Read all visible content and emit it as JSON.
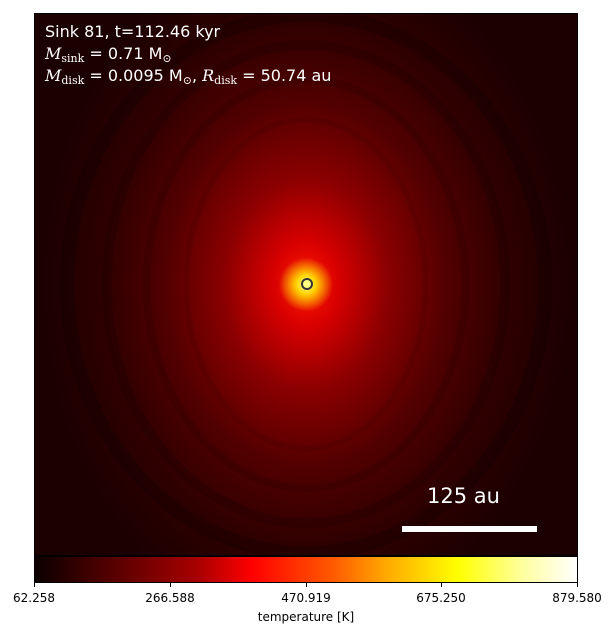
{
  "title": {
    "line1": "Sink 81, t=112.46 kyr",
    "m_symbol": "M",
    "sink_sub": "sink",
    "sink_value": " = 0.71 M",
    "sun_sub": "⊙",
    "disk_sub": "disk",
    "disk_value": " = 0.0095 M",
    "r_symbol": "R",
    "r_disk_value": " = 50.74 au",
    "separator": ", "
  },
  "scale_bar": {
    "label": "125 au"
  },
  "colorbar": {
    "label": "temperature [K]",
    "ticks": [
      "62.258",
      "266.588",
      "470.919",
      "675.250",
      "879.580"
    ],
    "colors": [
      "#0b0000",
      "#a80000",
      "#ff0000",
      "#ffaa00",
      "#ffff00",
      "#ffffff"
    ]
  },
  "colors": {
    "marker_fill": "#ffff80",
    "marker_edge": "#333333",
    "text": "#ffffff"
  }
}
